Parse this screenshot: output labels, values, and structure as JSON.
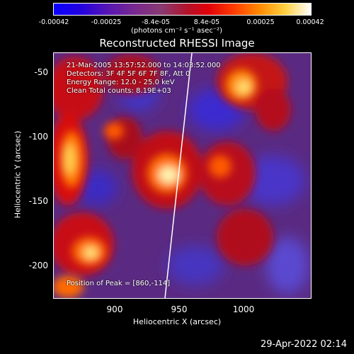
{
  "colorbar": {
    "ticks": [
      "-0.00042",
      "-0.00025",
      "-8.4e-05",
      "8.4e-05",
      "0.00025",
      "0.00042"
    ],
    "units": "(photons cm⁻² s⁻¹ asec⁻²)"
  },
  "title": "Reconstructed RHESSI Image",
  "info": {
    "line1": "21-Mar-2005 13:57:52.000 to 14:03:52.000",
    "line2": "Detectors: 3F 4F 5F 6F 7F 8F, Att 0",
    "line3": "Energy Range: 12.0 - 25.0 keV",
    "line4": "Clean     Total counts: 8.19E+03",
    "peak": "Position of Peak = [860,-114]"
  },
  "axes": {
    "xlabel": "Heliocentric X (arcsec)",
    "ylabel": "Heliocentric Y (arcsec)",
    "xticks": [
      "900",
      "950",
      "1000"
    ],
    "yticks": [
      "-50",
      "-100",
      "-150",
      "-200"
    ]
  },
  "footer_date": "29-Apr-2022 02:14"
}
